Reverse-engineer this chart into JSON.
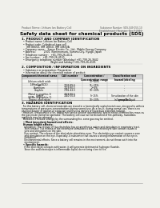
{
  "bg_color": "#f0f0eb",
  "header_left": "Product Name: Lithium Ion Battery Cell",
  "header_right": "Substance Number: SDS-049-050-10\nEstablishment / Revision: Dec.7.2016",
  "title": "Safety data sheet for chemical products (SDS)",
  "section1_title": "1. PRODUCT AND COMPANY IDENTIFICATION",
  "section1_lines": [
    "  • Product name: Lithium Ion Battery Cell",
    "  • Product code: Cylindrical-type cell",
    "      IHR 86650, IHR 18650, IHR 18650A",
    "  • Company name:   Sanyo Electric Co., Ltd., Mobile Energy Company",
    "  • Address:          2001  Kamimomura, Sumoto-City, Hyogo, Japan",
    "  • Telephone number:   +81-799-26-4111",
    "  • Fax number:   +81-799-26-4120",
    "  • Emergency telephone number (Weekday) +81-799-26-3642",
    "                                    (Night and holiday) +81-799-26-4101"
  ],
  "section2_title": "2. COMPOSITION / INFORMATION ON INGREDIENTS",
  "section2_lines": [
    "  • Substance or preparation: Preparation",
    "  • Information about the chemical nature of product:"
  ],
  "table_headers": [
    "Component/chemical name",
    "CAS number",
    "Concentration /\nConcentration range",
    "Classification and\nhazard labeling"
  ],
  "table_rows": [
    [
      "Lithium cobalt oxide\n(LiMnxCoxNiO2)",
      "-",
      "30~60%",
      "-"
    ],
    [
      "Iron",
      "7439-89-6",
      "15~25%",
      "-"
    ],
    [
      "Aluminum",
      "7429-90-5",
      "2~6%",
      "-"
    ],
    [
      "Graphite\n(Metal in graphite-1)\n(Al/Mn in graphite-1)",
      "7782-42-5\n7429-90-5",
      "10~20%",
      "-"
    ],
    [
      "Copper",
      "7440-50-8",
      "5~15%",
      "Sensitization of the skin\ngroup No.2"
    ],
    [
      "Organic electrolyte",
      "-",
      "10~20%",
      "Inflammable liquid"
    ]
  ],
  "section3_title": "3. HAZARDS IDENTIFICATION",
  "section3_para": [
    "  For this battery cell, chemical materials are stored in a hermetically sealed metal case, designed to withstand",
    "temperatures or pressures-concentrations during normal use. As a result, during normal use, there is no",
    "physical danger of ignition or explosion and thus no danger of hazardous materials leakage.",
    "  However, if exposed to a fire, added mechanical shocks, decomposed, where electro-chemical dry mass can,",
    "the gas inside cannot be operated. The battery cell case will be breached of fire-pathway, hazardous",
    "materials may be released.",
    "  Moreover, if heated strongly by the surrounding fire, some gas may be emitted."
  ],
  "bullet1": "  • Most important hazard and effects:",
  "human_health": "Human health effects:",
  "inhalation": "    Inhalation: The release of the electrolyte has an anesthesia action and stimulates in respiratory tract.",
  "skin1": "    Skin contact: The release of the electrolyte stimulates a skin. The electrolyte skin contact causes a",
  "skin2": "    sore and stimulation on the skin.",
  "eye1": "    Eye contact: The release of the electrolyte stimulates eyes. The electrolyte eye contact causes a sore",
  "eye2": "    and stimulation on the eye. Especially, a substance that causes a strong inflammation of the eye is",
  "eye3": "    contained.",
  "env1": "    Environmental effects: Since a battery cell remains in the environment, do not throw out it into the",
  "env2": "    environment.",
  "bullet2": "  • Specific hazards:",
  "spec1": "    If the electrolyte contacts with water, it will generate detrimental hydrogen fluoride.",
  "spec2": "    Since the said electrolyte is inflammable liquid, do not bring close to fire."
}
